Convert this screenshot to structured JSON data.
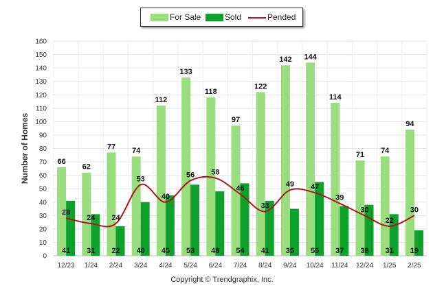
{
  "chart_data": {
    "type": "bar",
    "ylabel": "Number of Homes",
    "xlabel": "",
    "ylim": [
      0,
      160
    ],
    "yticks": [
      0,
      10,
      20,
      30,
      40,
      50,
      60,
      70,
      80,
      90,
      100,
      110,
      120,
      130,
      140,
      150,
      160
    ],
    "categories": [
      "12/23",
      "1/24",
      "2/24",
      "3/24",
      "4/24",
      "5/24",
      "6/24",
      "7/24",
      "8/24",
      "9/24",
      "10/24",
      "11/24",
      "12/24",
      "1/25",
      "2/25"
    ],
    "series": [
      {
        "name": "For Sale",
        "type": "bar",
        "color": "#99dd7f",
        "values": [
          66,
          62,
          77,
          74,
          112,
          133,
          118,
          97,
          122,
          142,
          144,
          114,
          71,
          74,
          94
        ]
      },
      {
        "name": "Sold",
        "type": "bar",
        "color": "#0ea12b",
        "values": [
          41,
          31,
          22,
          40,
          45,
          53,
          48,
          54,
          41,
          35,
          55,
          37,
          38,
          31,
          19
        ]
      },
      {
        "name": "Pended",
        "type": "line",
        "color": "#b0131a",
        "values": [
          28,
          24,
          24,
          53,
          40,
          56,
          58,
          46,
          33,
          49,
          47,
          39,
          30,
          22,
          30
        ]
      }
    ],
    "grid": true,
    "legend_position": "top-center"
  },
  "legend": {
    "for_sale": "For Sale",
    "sold": "Sold",
    "pended": "Pended"
  },
  "footer": {
    "copyright": "Copyright © Trendgraphix, Inc."
  }
}
